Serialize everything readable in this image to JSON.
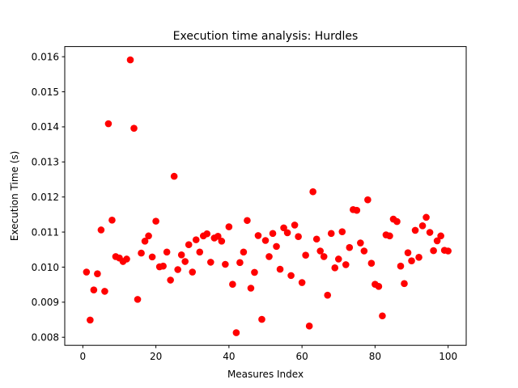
{
  "chart_data": {
    "type": "scatter",
    "title": "Execution time analysis: Hurdles",
    "xlabel": "Measures Index",
    "ylabel": "Execution Time (s)",
    "xlim": [
      -4.95,
      104.95
    ],
    "ylim": [
      0.00777,
      0.01629
    ],
    "xticks": [
      0,
      20,
      40,
      60,
      80,
      100
    ],
    "xtick_labels": [
      "0",
      "20",
      "40",
      "60",
      "80",
      "100"
    ],
    "yticks": [
      0.008,
      0.009,
      0.01,
      0.011,
      0.012,
      0.013,
      0.014,
      0.015,
      0.016
    ],
    "ytick_labels": [
      "0.008",
      "0.009",
      "0.010",
      "0.011",
      "0.012",
      "0.013",
      "0.014",
      "0.015",
      "0.016"
    ],
    "grid": false,
    "marker_color": "#ff0000",
    "series": [
      {
        "x": [
          1,
          2,
          3,
          4,
          5,
          6,
          7,
          8,
          9,
          10,
          11,
          12,
          13,
          14,
          15,
          16,
          17,
          18,
          19,
          20,
          21,
          22,
          23,
          24,
          25,
          26,
          27,
          28,
          29,
          30,
          31,
          32,
          33,
          34,
          35,
          36,
          37,
          38,
          39,
          40,
          41,
          42,
          43,
          44,
          45,
          46,
          47,
          48,
          49,
          50,
          51,
          52,
          53,
          54,
          55,
          56,
          57,
          58,
          59,
          60,
          61,
          62,
          63,
          64,
          65,
          66,
          67,
          68,
          69,
          70,
          71,
          72,
          73,
          74,
          75,
          76,
          77,
          78,
          79,
          80,
          81,
          82,
          83,
          84,
          85,
          86,
          87,
          88,
          89,
          90,
          91,
          92,
          93,
          94,
          95,
          96,
          97,
          98,
          99,
          100
        ],
        "y": [
          0.00986,
          0.00849,
          0.00935,
          0.00981,
          0.01106,
          0.00931,
          0.01409,
          0.01134,
          0.0103,
          0.01026,
          0.01016,
          0.01023,
          0.01591,
          0.01396,
          0.00908,
          0.0104,
          0.01074,
          0.01089,
          0.01029,
          0.01131,
          0.01001,
          0.01003,
          0.01043,
          0.00963,
          0.01259,
          0.00993,
          0.01035,
          0.01016,
          0.01064,
          0.00986,
          0.01078,
          0.01043,
          0.01089,
          0.01095,
          0.01014,
          0.01083,
          0.01088,
          0.01074,
          0.01008,
          0.01115,
          0.00951,
          0.00813,
          0.01013,
          0.01043,
          0.01133,
          0.0094,
          0.00985,
          0.0109,
          0.00851,
          0.01076,
          0.0103,
          0.01096,
          0.01059,
          0.00994,
          0.01112,
          0.01098,
          0.00976,
          0.0112,
          0.01087,
          0.00956,
          0.01034,
          0.00832,
          0.01215,
          0.0108,
          0.01046,
          0.0103,
          0.0092,
          0.01096,
          0.00998,
          0.01023,
          0.01101,
          0.01007,
          0.01056,
          0.01164,
          0.01162,
          0.01069,
          0.01046,
          0.01192,
          0.01011,
          0.00951,
          0.00945,
          0.00861,
          0.01092,
          0.01089,
          0.01137,
          0.0113,
          0.01003,
          0.00953,
          0.01041,
          0.01018,
          0.01105,
          0.01028,
          0.01118,
          0.01142,
          0.01099,
          0.01047,
          0.01075,
          0.01089,
          0.01048,
          0.01046
        ]
      }
    ]
  }
}
